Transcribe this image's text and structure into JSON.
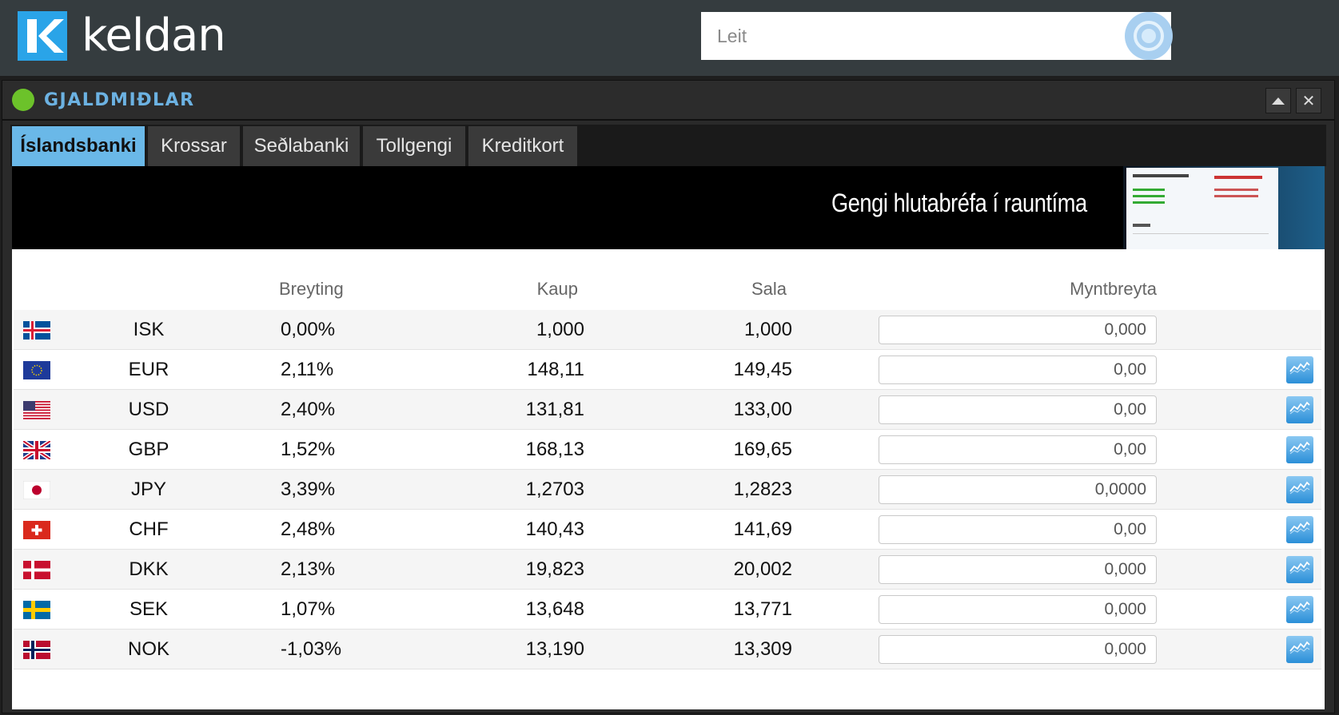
{
  "header": {
    "logo_text": "keldan",
    "search_placeholder": "Leit"
  },
  "panel": {
    "title": "GJALDMIÐLAR",
    "status_color": "#6cc22a"
  },
  "tabs": [
    {
      "label": "Íslandsbanki",
      "active": true
    },
    {
      "label": "Krossar",
      "active": false
    },
    {
      "label": "Seðlabanki",
      "active": false
    },
    {
      "label": "Tollgengi",
      "active": false
    },
    {
      "label": "Kreditkort",
      "active": false
    }
  ],
  "banner": {
    "text": "Gengi hlutabréfa í rauntíma"
  },
  "table": {
    "headers": {
      "change": "Breyting",
      "buy": "Kaup",
      "sell": "Sala",
      "converter": "Myntbreyta"
    },
    "rows": [
      {
        "code": "ISK",
        "flag": "iceland-flag",
        "change": "0,00%",
        "direction": "neutral",
        "buy": "1,000",
        "sell": "1,000",
        "converter": "0,000",
        "chart": false
      },
      {
        "code": "EUR",
        "flag": "eu-flag",
        "change": "2,11%",
        "direction": "up",
        "buy": "148,11",
        "sell": "149,45",
        "converter": "0,00",
        "chart": true
      },
      {
        "code": "USD",
        "flag": "us-flag",
        "change": "2,40%",
        "direction": "up",
        "buy": "131,81",
        "sell": "133,00",
        "converter": "0,00",
        "chart": true
      },
      {
        "code": "GBP",
        "flag": "uk-flag",
        "change": "1,52%",
        "direction": "up",
        "buy": "168,13",
        "sell": "169,65",
        "converter": "0,00",
        "chart": true
      },
      {
        "code": "JPY",
        "flag": "japan-flag",
        "change": "3,39%",
        "direction": "up",
        "buy": "1,2703",
        "sell": "1,2823",
        "converter": "0,0000",
        "chart": true
      },
      {
        "code": "CHF",
        "flag": "switzerland-flag",
        "change": "2,48%",
        "direction": "up",
        "buy": "140,43",
        "sell": "141,69",
        "converter": "0,00",
        "chart": true
      },
      {
        "code": "DKK",
        "flag": "denmark-flag",
        "change": "2,13%",
        "direction": "up",
        "buy": "19,823",
        "sell": "20,002",
        "converter": "0,000",
        "chart": true
      },
      {
        "code": "SEK",
        "flag": "sweden-flag",
        "change": "1,07%",
        "direction": "up",
        "buy": "13,648",
        "sell": "13,771",
        "converter": "0,000",
        "chart": true
      },
      {
        "code": "NOK",
        "flag": "norway-flag",
        "change": "-1,03%",
        "direction": "down",
        "buy": "13,190",
        "sell": "13,309",
        "converter": "0,000",
        "chart": true
      }
    ]
  }
}
